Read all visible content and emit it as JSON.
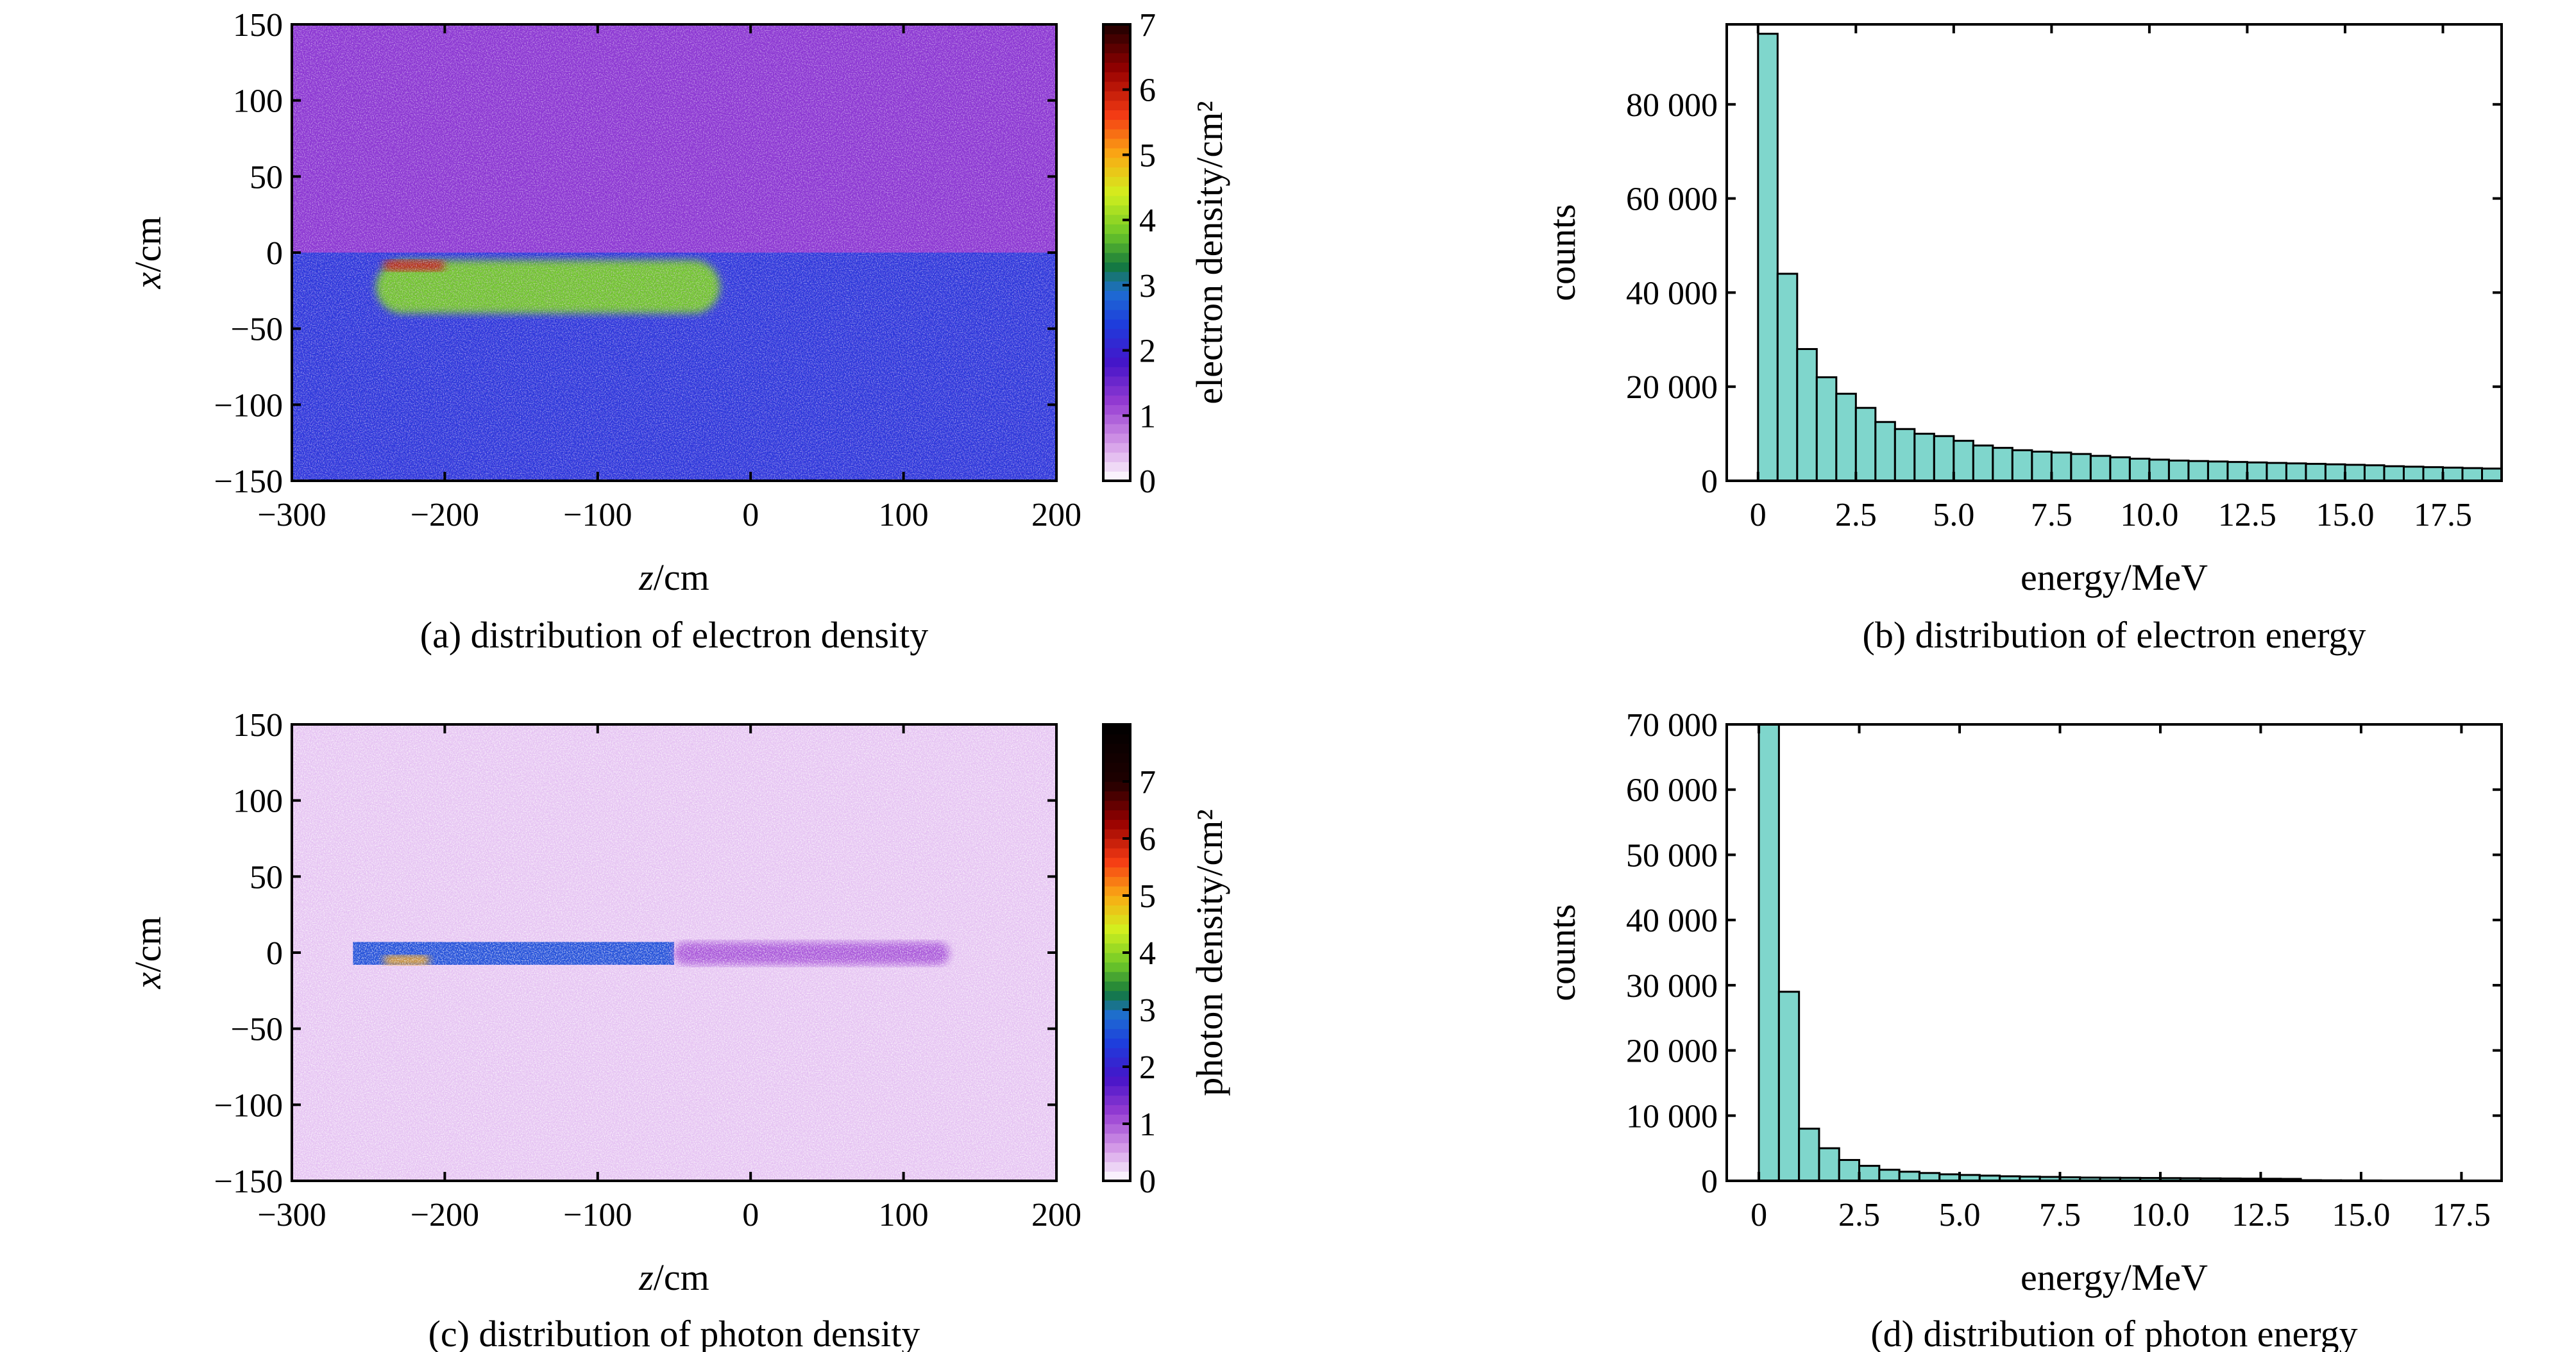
{
  "chart_data": [
    {
      "panel": "a",
      "type": "heatmap",
      "caption": "(a) distribution of electron density",
      "xlabel_italic": "z",
      "xlabel_unit": "/cm",
      "ylabel_italic": "x",
      "ylabel_unit": "/cm",
      "xlim": [
        -300,
        200
      ],
      "ylim": [
        -150,
        150
      ],
      "x_ticks": [
        "−300",
        "−200",
        "−100",
        "0",
        "100",
        "200"
      ],
      "x_tick_values": [
        -300,
        -200,
        -100,
        0,
        100,
        200
      ],
      "y_ticks": [
        "150",
        "100",
        "50",
        "0",
        "−50",
        "−100",
        "−150"
      ],
      "y_tick_values": [
        150,
        100,
        50,
        0,
        -50,
        -100,
        -150
      ],
      "colorbar_label": "electron density/cm²",
      "colorbar_range": [
        0,
        7
      ],
      "colorbar_ticks": [
        "0",
        "1",
        "2",
        "3",
        "4",
        "5",
        "6",
        "7"
      ],
      "regions": [
        {
          "z": [
            -300,
            200
          ],
          "x": [
            0,
            150
          ],
          "level": 1.3
        },
        {
          "z": [
            -300,
            200
          ],
          "x": [
            -150,
            0
          ],
          "level": 2.3
        },
        {
          "z": [
            -245,
            -20
          ],
          "x": [
            -40,
            -5
          ],
          "level": 3.8
        },
        {
          "z": [
            -240,
            -200
          ],
          "x": [
            -12,
            -5
          ],
          "level": 6.0
        }
      ]
    },
    {
      "panel": "b",
      "type": "bar",
      "caption": "(b) distribution of electron energy",
      "xlabel": "energy/MeV",
      "ylabel": "counts",
      "xlim": [
        -0.8,
        19
      ],
      "ylim": [
        0,
        97000
      ],
      "x_ticks": [
        "0",
        "2.5",
        "5.0",
        "7.5",
        "10.0",
        "12.5",
        "15.0",
        "17.5"
      ],
      "x_tick_values": [
        0,
        2.5,
        5,
        7.5,
        10,
        12.5,
        15,
        17.5
      ],
      "y_ticks": [
        "0",
        "20 000",
        "40 000",
        "60 000",
        "80 000"
      ],
      "y_tick_values": [
        0,
        20000,
        40000,
        60000,
        80000
      ],
      "bin_width": 0.5,
      "bin_start": 0,
      "values": [
        95000,
        44000,
        28000,
        22000,
        18500,
        15500,
        12500,
        11000,
        10000,
        9500,
        8500,
        7500,
        7000,
        6500,
        6200,
        6000,
        5700,
        5300,
        5000,
        4700,
        4500,
        4300,
        4200,
        4100,
        4000,
        3900,
        3800,
        3700,
        3600,
        3500,
        3400,
        3300,
        3100,
        3000,
        2900,
        2800,
        2700,
        2600
      ]
    },
    {
      "panel": "c",
      "type": "heatmap",
      "caption": "(c) distribution of photon density",
      "xlabel_italic": "z",
      "xlabel_unit": "/cm",
      "ylabel_italic": "x",
      "ylabel_unit": "/cm",
      "xlim": [
        -300,
        200
      ],
      "ylim": [
        -150,
        150
      ],
      "x_ticks": [
        "−300",
        "−200",
        "−100",
        "0",
        "100",
        "200"
      ],
      "x_tick_values": [
        -300,
        -200,
        -100,
        0,
        100,
        200
      ],
      "y_ticks": [
        "150",
        "100",
        "50",
        "0",
        "−50",
        "−100",
        "−150"
      ],
      "y_tick_values": [
        150,
        100,
        50,
        0,
        -50,
        -100,
        -150
      ],
      "colorbar_label": "photon density/cm²",
      "colorbar_range": [
        0,
        8
      ],
      "colorbar_ticks": [
        "0",
        "1",
        "2",
        "3",
        "4",
        "5",
        "6",
        "7"
      ],
      "regions": [
        {
          "z": [
            -300,
            200
          ],
          "x": [
            -150,
            150
          ],
          "level": 0.3
        },
        {
          "z": [
            -260,
            -50
          ],
          "x": [
            -8,
            7
          ],
          "level": 2.6
        },
        {
          "z": [
            -50,
            130
          ],
          "x": [
            -8,
            7
          ],
          "level": 1.0
        },
        {
          "z": [
            -240,
            -210
          ],
          "x": [
            -8,
            -2
          ],
          "level": 5.0
        }
      ]
    },
    {
      "panel": "d",
      "type": "bar",
      "caption": "(d) distribution of photon energy",
      "xlabel": "energy/MeV",
      "ylabel": "counts",
      "xlim": [
        -0.8,
        18.5
      ],
      "ylim": [
        0,
        70000
      ],
      "x_ticks": [
        "0",
        "2.5",
        "5.0",
        "7.5",
        "10.0",
        "12.5",
        "15.0",
        "17.5"
      ],
      "x_tick_values": [
        0,
        2.5,
        5,
        7.5,
        10,
        12.5,
        15,
        17.5
      ],
      "y_ticks": [
        "0",
        "10 000",
        "20 000",
        "30 000",
        "40 000",
        "50 000",
        "60 000",
        "70 000"
      ],
      "y_tick_values": [
        0,
        10000,
        20000,
        30000,
        40000,
        50000,
        60000,
        70000
      ],
      "bin_width": 0.5,
      "bin_start": 0,
      "values": [
        70000,
        29000,
        8000,
        5000,
        3200,
        2300,
        1700,
        1400,
        1200,
        1000,
        900,
        800,
        700,
        650,
        600,
        550,
        500,
        480,
        460,
        440,
        420,
        400,
        380,
        360,
        340,
        320,
        300,
        100,
        80,
        70,
        60,
        50,
        40,
        30,
        20
      ]
    }
  ]
}
